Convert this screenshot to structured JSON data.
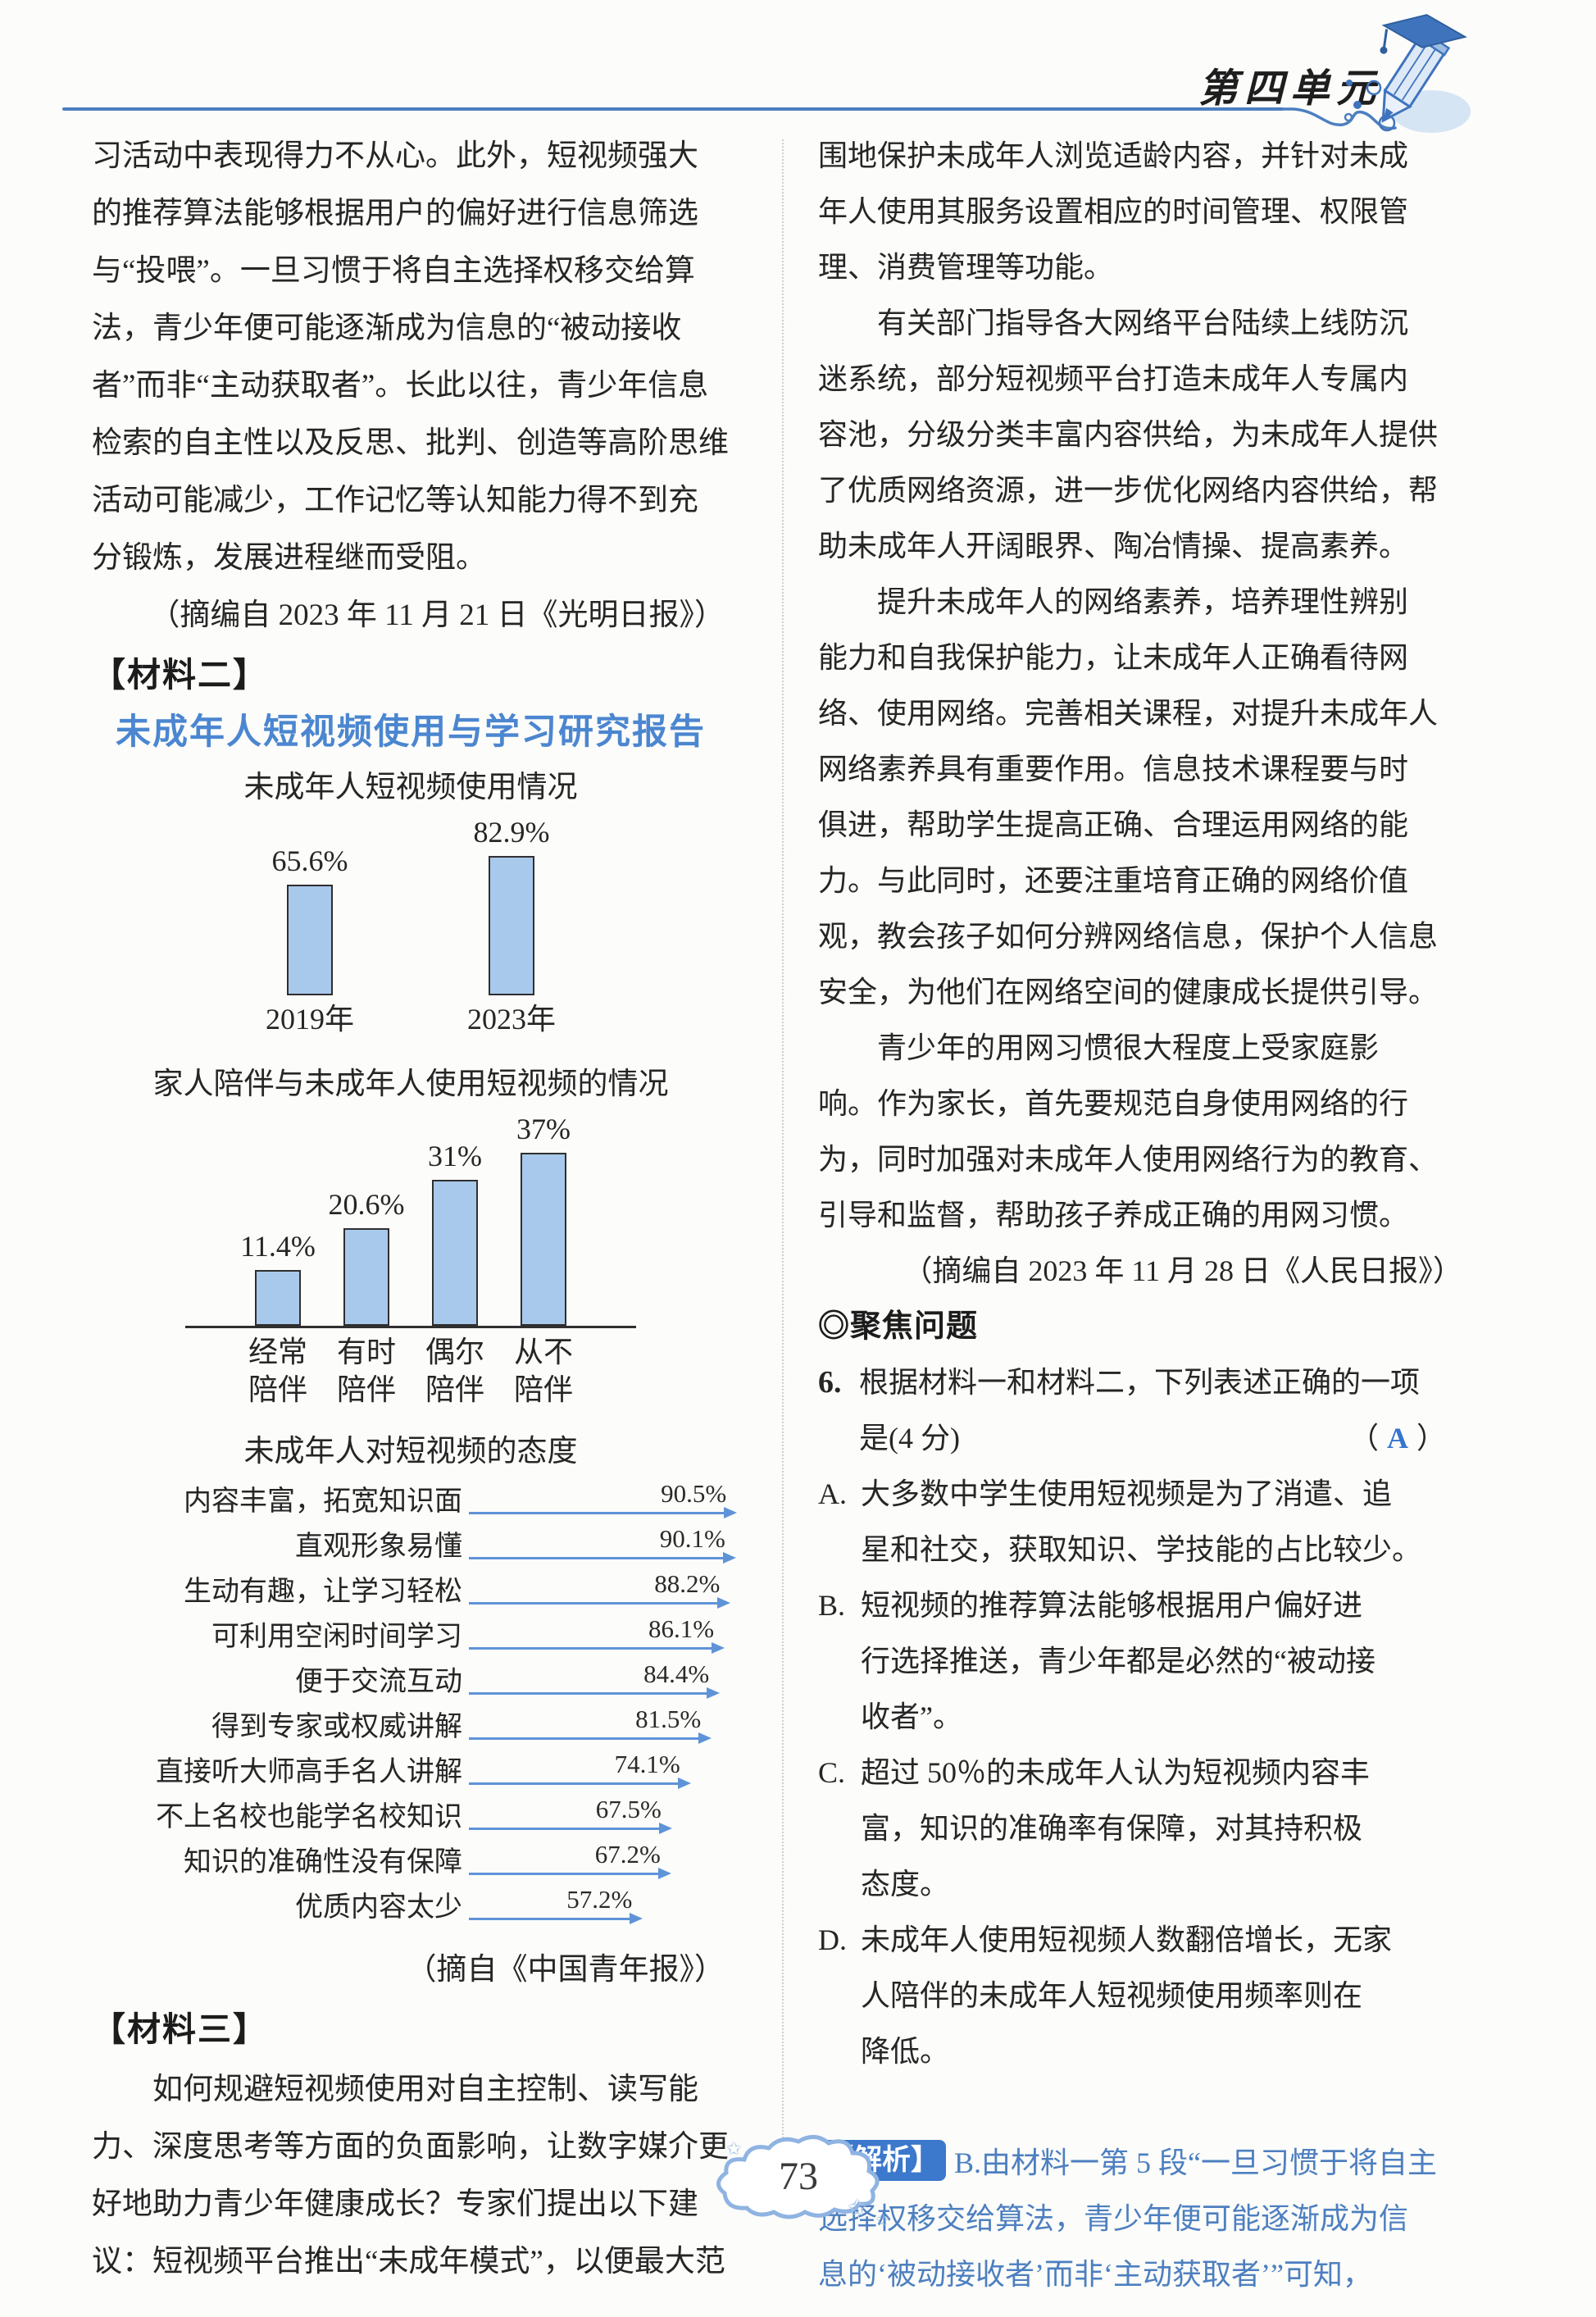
{
  "page": {
    "unit_label": "第四单元",
    "page_number": "73"
  },
  "icons": {
    "header_icon": "pencil-with-graduation-cap-icon",
    "page_badge": "cloud-badge"
  },
  "colors": {
    "header_blue": "#4d7fc0",
    "report_title_blue": "#4b86d0",
    "bar_fill": "#a9c9ec",
    "bar_border": "#2f2f2f",
    "arrow_blue": "#5f93d8",
    "analysis_blue": "#4d7fc0",
    "analysis_chip_bg": "#3c78cc",
    "answer_blue": "#3575cf",
    "cloud_blue": "#8fb3e2",
    "text_black": "#262626"
  },
  "left": {
    "material1_lines": [
      "习活动中表现得力不从心。此外，短视频强大",
      "的推荐算法能够根据用户的偏好进行信息筛选",
      "与“投喂”。一旦习惯于将自主选择权移交给算",
      "法，青少年便可能逐渐成为信息的“被动接收",
      "者”而非“主动获取者”。长此以往，青少年信息",
      "检索的自主性以及反思、批判、创造等高阶思维",
      "活动可能减少，工作记忆等认知能力得不到充",
      "分锻炼，发展进程继而受阻。"
    ],
    "material1_source": "（摘编自 2023 年 11 月 21 日《光明日报》）",
    "material2_tag": "【材料二】",
    "report_title": "未成年人短视频使用与学习研究报告",
    "chart3_source": "（摘自《中国青年报》）",
    "material3_tag": "【材料三】",
    "material3_lines": [
      "　　如何规避短视频使用对自主控制、读写能",
      "力、深度思考等方面的负面影响，让数字媒介更",
      "好地助力青少年健康成长？专家们提出以下建",
      "议：短视频平台推出“未成年模式”，以便最大范"
    ]
  },
  "chart_data": [
    {
      "type": "bar",
      "title": "未成年人短视频使用情况",
      "categories": [
        "2019年",
        "2023年"
      ],
      "values": [
        65.6,
        82.9
      ],
      "value_labels": [
        "65.6%",
        "82.9%"
      ],
      "ylim": [
        0,
        100
      ],
      "grid": false,
      "bar_color": "#a9c9ec"
    },
    {
      "type": "bar",
      "title": "家人陪伴与未成年人使用短视频的情况",
      "categories": [
        "经常\n陪伴",
        "有时\n陪伴",
        "偶尔\n陪伴",
        "从不\n陪伴"
      ],
      "values": [
        11.4,
        20.6,
        31,
        37
      ],
      "value_labels": [
        "11.4%",
        "20.6%",
        "31%",
        "37%"
      ],
      "ylim": [
        0,
        40
      ],
      "grid": false,
      "bar_color": "#a9c9ec"
    },
    {
      "type": "bar",
      "orientation": "horizontal",
      "title": "未成年人对短视频的态度",
      "categories": [
        "内容丰富，拓宽知识面",
        "直观形象易懂",
        "生动有趣，让学习轻松",
        "可利用空闲时间学习",
        "便于交流互动",
        "得到专家或权威讲解",
        "直接听大师高手名人讲解",
        "不上名校也能学名校知识",
        "知识的准确性没有保障",
        "优质内容太少"
      ],
      "values": [
        90.5,
        90.1,
        88.2,
        86.1,
        84.4,
        81.5,
        74.1,
        67.5,
        67.2,
        57.2
      ],
      "value_labels": [
        "90.5%",
        "90.1%",
        "88.2%",
        "86.1%",
        "84.4%",
        "81.5%",
        "74.1%",
        "67.5%",
        "67.2%",
        "57.2%"
      ],
      "xlim": [
        0,
        100
      ],
      "grid": false,
      "arrow_color": "#5f93d8"
    }
  ],
  "right": {
    "para_lines": [
      "围地保护未成年人浏览适龄内容，并针对未成",
      "年人使用其服务设置相应的时间管理、权限管",
      "理、消费管理等功能。",
      "　　有关部门指导各大网络平台陆续上线防沉",
      "迷系统，部分短视频平台打造未成年人专属内",
      "容池，分级分类丰富内容供给，为未成年人提供",
      "了优质网络资源，进一步优化网络内容供给，帮",
      "助未成年人开阔眼界、陶冶情操、提高素养。",
      "　　提升未成年人的网络素养，培养理性辨别",
      "能力和自我保护能力，让未成年人正确看待网",
      "络、使用网络。完善相关课程，对提升未成年人",
      "网络素养具有重要作用。信息技术课程要与时",
      "俱进，帮助学生提高正确、合理运用网络的能",
      "力。与此同时，还要注重培育正确的网络价值",
      "观，教会孩子如何分辨网络信息，保护个人信息",
      "安全，为他们在网络空间的健康成长提供引导。",
      "　　青少年的用网习惯很大程度上受家庭影",
      "响。作为家长，首先要规范自身使用网络的行",
      "为，同时加强对未成年人使用网络行为的教育、",
      "引导和监督，帮助孩子养成正确的用网习惯。"
    ],
    "source": "（摘编自 2023 年 11 月 28 日《人民日报》）",
    "focus_heading": "◎聚焦问题",
    "question": {
      "number": "6.",
      "lines": [
        "根据材料一和材料二，下列表述正确的一项",
        "是(4 分)"
      ],
      "answer_open": "（",
      "answer_letter": "A",
      "answer_close": "）",
      "options": [
        {
          "label": "A.",
          "lines": [
            "大多数中学生使用短视频是为了消遣、追",
            "星和社交，获取知识、学技能的占比较少。"
          ]
        },
        {
          "label": "B.",
          "lines": [
            "短视频的推荐算法能够根据用户偏好进",
            "行选择推送，青少年都是必然的“被动接",
            "收者”。"
          ]
        },
        {
          "label": "C.",
          "lines": [
            "超过 50％的未成年人认为短视频内容丰",
            "富，知识的准确率有保障，对其持积极",
            "态度。"
          ]
        },
        {
          "label": "D.",
          "lines": [
            "未成年人使用短视频人数翻倍增长，无家",
            "人陪伴的未成年人短视频使用频率则在",
            "降低。"
          ]
        }
      ]
    },
    "analysis": {
      "tag": "【解析】",
      "first_line": "B.由材料一第 5 段“一旦习惯于将自主",
      "rest_lines": [
        "选择权移交给算法，青少年便可能逐渐成为信",
        "息的‘被动接收者’而非‘主动获取者’”可知，"
      ]
    }
  }
}
